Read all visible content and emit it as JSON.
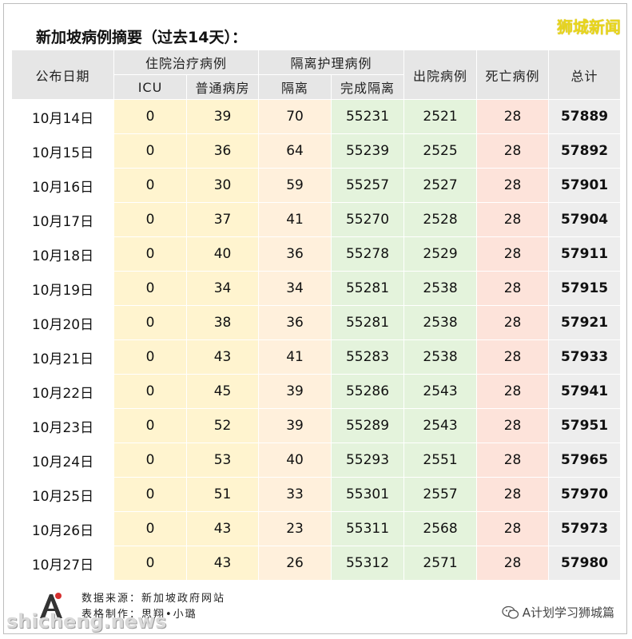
{
  "title": "新加坡病例摘要（过去14天）：",
  "brand": "狮城新闻",
  "headers": {
    "date": "公布日期",
    "hospital_group": "住院治疗病例",
    "icu": "ICU",
    "ward": "普通病房",
    "isolation_group": "隔离护理病例",
    "isolation": "隔离",
    "completed": "完成隔离",
    "discharged": "出院病例",
    "deaths": "死亡病例",
    "total": "总计"
  },
  "rows": [
    {
      "date": "10月14日",
      "icu": "0",
      "ward": "39",
      "isolation": "70",
      "completed": "55231",
      "discharged": "2521",
      "deaths": "28",
      "total": "57889"
    },
    {
      "date": "10月15日",
      "icu": "0",
      "ward": "36",
      "isolation": "64",
      "completed": "55239",
      "discharged": "2525",
      "deaths": "28",
      "total": "57892"
    },
    {
      "date": "10月16日",
      "icu": "0",
      "ward": "30",
      "isolation": "59",
      "completed": "55257",
      "discharged": "2527",
      "deaths": "28",
      "total": "57901"
    },
    {
      "date": "10月17日",
      "icu": "0",
      "ward": "37",
      "isolation": "41",
      "completed": "55270",
      "discharged": "2528",
      "deaths": "28",
      "total": "57904"
    },
    {
      "date": "10月18日",
      "icu": "0",
      "ward": "40",
      "isolation": "36",
      "completed": "55278",
      "discharged": "2529",
      "deaths": "28",
      "total": "57911"
    },
    {
      "date": "10月19日",
      "icu": "0",
      "ward": "34",
      "isolation": "34",
      "completed": "55281",
      "discharged": "2538",
      "deaths": "28",
      "total": "57915"
    },
    {
      "date": "10月20日",
      "icu": "0",
      "ward": "38",
      "isolation": "36",
      "completed": "55281",
      "discharged": "2538",
      "deaths": "28",
      "total": "57921"
    },
    {
      "date": "10月21日",
      "icu": "0",
      "ward": "43",
      "isolation": "41",
      "completed": "55283",
      "discharged": "2538",
      "deaths": "28",
      "total": "57933"
    },
    {
      "date": "10月22日",
      "icu": "0",
      "ward": "45",
      "isolation": "39",
      "completed": "55286",
      "discharged": "2543",
      "deaths": "28",
      "total": "57941"
    },
    {
      "date": "10月23日",
      "icu": "0",
      "ward": "52",
      "isolation": "39",
      "completed": "55289",
      "discharged": "2543",
      "deaths": "28",
      "total": "57951"
    },
    {
      "date": "10月24日",
      "icu": "0",
      "ward": "53",
      "isolation": "40",
      "completed": "55293",
      "discharged": "2551",
      "deaths": "28",
      "total": "57965"
    },
    {
      "date": "10月25日",
      "icu": "0",
      "ward": "51",
      "isolation": "33",
      "completed": "55301",
      "discharged": "2557",
      "deaths": "28",
      "total": "57970"
    },
    {
      "date": "10月26日",
      "icu": "0",
      "ward": "43",
      "isolation": "23",
      "completed": "55311",
      "discharged": "2568",
      "deaths": "28",
      "total": "57973"
    },
    {
      "date": "10月27日",
      "icu": "0",
      "ward": "43",
      "isolation": "26",
      "completed": "55312",
      "discharged": "2571",
      "deaths": "28",
      "total": "57980"
    }
  ],
  "footer": {
    "source": "数据来源：新加坡政府网站",
    "maker": "表格制作：思翔•小璐",
    "watermark": "shicheng.news",
    "wechat": "A计划学习狮城篇"
  }
}
